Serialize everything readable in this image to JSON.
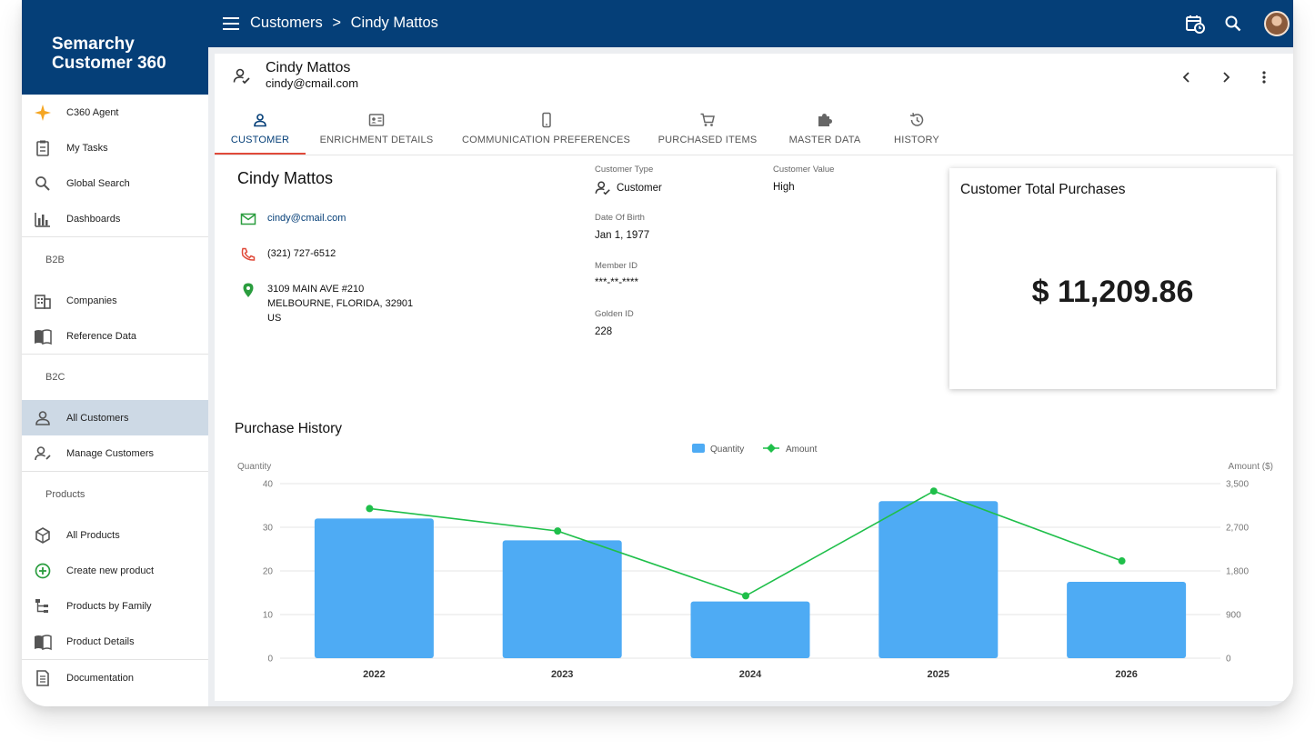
{
  "app": {
    "brand_line1": "Semarchy",
    "brand_line2": "Customer 360"
  },
  "header": {
    "crumb_root": "Customers",
    "crumb_sep": ">",
    "crumb_current": "Cindy Mattos"
  },
  "sidebar": {
    "group1": [
      {
        "label": "C360 Agent",
        "icon": "sparkle-icon"
      },
      {
        "label": "My Tasks",
        "icon": "clipboard-icon"
      },
      {
        "label": "Global Search",
        "icon": "search-icon"
      },
      {
        "label": "Dashboards",
        "icon": "bar-chart-icon"
      }
    ],
    "section_b2b": "B2B",
    "group_b2b": [
      {
        "label": "Companies",
        "icon": "building-icon"
      },
      {
        "label": "Reference Data",
        "icon": "book-icon"
      }
    ],
    "section_b2c": "B2C",
    "group_b2c": [
      {
        "label": "All Customers",
        "icon": "person-icon"
      },
      {
        "label": "Manage Customers",
        "icon": "person-edit-icon"
      }
    ],
    "section_products": "Products",
    "group_products": [
      {
        "label": "All Products",
        "icon": "box-icon"
      },
      {
        "label": "Create new product",
        "icon": "add-circle-icon"
      },
      {
        "label": "Products by Family",
        "icon": "tree-icon"
      },
      {
        "label": "Product Details",
        "icon": "book-icon"
      }
    ],
    "group_docs": [
      {
        "label": "Documentation",
        "icon": "document-icon"
      }
    ]
  },
  "record": {
    "title": "Cindy Mattos",
    "subtitle": "cindy@cmail.com"
  },
  "tabs": [
    {
      "label": "CUSTOMER",
      "icon": "person-icon"
    },
    {
      "label": "ENRICHMENT DETAILS",
      "icon": "id-card-icon"
    },
    {
      "label": "COMMUNICATION PREFERENCES",
      "icon": "phone-icon"
    },
    {
      "label": "PURCHASED ITEMS",
      "icon": "cart-icon"
    },
    {
      "label": "MASTER DATA",
      "icon": "puzzle-icon"
    },
    {
      "label": "HISTORY",
      "icon": "history-icon"
    }
  ],
  "customer": {
    "name": "Cindy Mattos",
    "email": "cindy@cmail.com",
    "phone": "(321) 727-6512",
    "address_line1": "3109 MAIN AVE #210",
    "address_line2": "MELBOURNE, FLORIDA, 32901",
    "address_line3": "US"
  },
  "fields": {
    "customer_type_label": "Customer Type",
    "customer_type_value": "Customer",
    "customer_value_label": "Customer Value",
    "customer_value_value": "High",
    "dob_label": "Date Of Birth",
    "dob_value": "Jan 1, 1977",
    "member_id_label": "Member ID",
    "member_id_value": "***-**-****",
    "golden_id_label": "Golden ID",
    "golden_id_value": "228"
  },
  "total_card": {
    "title": "Customer Total Purchases",
    "value": "$ 11,209.86"
  },
  "purchase_history": {
    "title": "Purchase History"
  },
  "colors": {
    "brand": "#053f78",
    "accent": "#e04a3a",
    "bar": "#4eabf4",
    "line": "#1fbf4a"
  },
  "chart_data": {
    "type": "bar",
    "categories": [
      "2022",
      "2023",
      "2024",
      "2025",
      "2026"
    ],
    "series": [
      {
        "name": "Quantity",
        "type": "bar",
        "axis": "left",
        "values": [
          32,
          27,
          13,
          36,
          17.5
        ]
      },
      {
        "name": "Amount",
        "type": "line",
        "axis": "right",
        "values": [
          3000,
          2550,
          1250,
          3350,
          1950
        ]
      }
    ],
    "ylabel": "Quantity",
    "y2label": "Amount ($)",
    "ylim": [
      0,
      40
    ],
    "y2lim": [
      0,
      3500
    ],
    "yticks": [
      "0",
      "10",
      "20",
      "30",
      "40"
    ],
    "y2ticks": [
      "0",
      "900",
      "1,800",
      "2,700",
      "3,500"
    ],
    "legend": "top-center",
    "grid": true
  }
}
